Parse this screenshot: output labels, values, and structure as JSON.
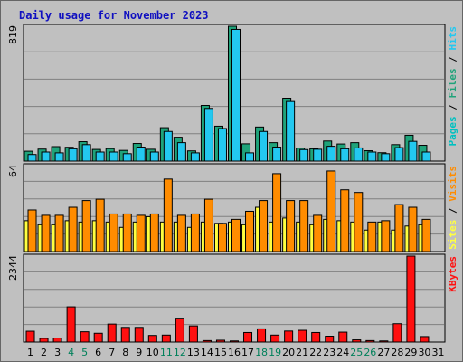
{
  "chart_data": {
    "type": "bar",
    "title": "Daily usage for November 2023",
    "days": [
      "1",
      "2",
      "3",
      "4",
      "5",
      "6",
      "7",
      "8",
      "9",
      "10",
      "11",
      "12",
      "13",
      "14",
      "15",
      "16",
      "17",
      "18",
      "19",
      "20",
      "21",
      "22",
      "23",
      "24",
      "25",
      "26",
      "27",
      "28",
      "29",
      "30",
      "31"
    ],
    "weekend_days": [
      "4",
      "5",
      "11",
      "12",
      "18",
      "19",
      "25",
      "26"
    ],
    "panels": [
      {
        "id": "top",
        "max_label": "819",
        "ylim": [
          0,
          819
        ],
        "legend": [
          "Pages",
          "Files",
          "Hits"
        ],
        "legend_separator": " / ",
        "series": [
          {
            "name": "Pages",
            "color": "#00c0c0",
            "values": [
              null,
              null,
              null,
              null,
              null,
              null,
              null,
              null,
              null,
              null,
              null,
              null,
              null,
              null,
              null,
              null,
              null,
              null,
              null,
              null,
              null,
              null,
              null,
              null,
              null,
              null,
              null,
              null,
              null,
              null,
              null
            ]
          },
          {
            "name": "Files",
            "color": "#1fa37a",
            "values": [
              60,
              73,
              88,
              84,
              118,
              71,
              76,
              65,
              107,
              72,
              203,
              145,
              62,
              338,
              212,
              819,
              105,
              207,
              112,
              382,
              79,
              75,
              122,
              104,
              112,
              63,
              51,
              100,
              157,
              96,
              0
            ]
          },
          {
            "name": "Hits",
            "color": "#23c8f0",
            "values": [
              40,
              55,
              50,
              75,
              100,
              55,
              55,
              45,
              85,
              55,
              180,
              112,
              50,
              320,
              198,
              800,
              50,
              180,
              85,
              362,
              70,
              72,
              90,
              75,
              80,
              55,
              45,
              82,
              120,
              55,
              0
            ]
          }
        ]
      },
      {
        "id": "middle",
        "max_label": "64",
        "ylim": [
          0,
          64
        ],
        "legend": [
          "Sites",
          "Visits"
        ],
        "legend_separator": " / ",
        "series": [
          {
            "name": "Sites",
            "color": "#ffff40",
            "values": [
              23,
              20,
              20,
              23,
              22,
              23,
              22,
              18,
              22,
              26,
              22,
              22,
              18,
              22,
              21,
              22,
              20,
              33,
              22,
              25,
              22,
              20,
              24,
              23,
              22,
              16,
              22,
              16,
              19,
              20,
              0
            ]
          },
          {
            "name": "Visits",
            "color": "#ff8c00",
            "values": [
              31,
              27,
              27,
              33,
              38,
              39,
              28,
              28,
              27,
              28,
              54,
              27,
              28,
              39,
              21,
              24,
              30,
              38,
              58,
              38,
              38,
              27,
              60,
              46,
              44,
              22,
              23,
              35,
              33,
              24,
              0
            ]
          }
        ]
      },
      {
        "id": "bottom",
        "max_label": "2344",
        "ylim": [
          0,
          2344
        ],
        "legend": [
          "KBytes"
        ],
        "legend_separator": "",
        "series": [
          {
            "name": "KBytes",
            "color": "#ff1010",
            "values": [
              295,
              100,
              110,
              960,
              280,
              240,
              490,
              400,
              400,
              180,
              190,
              650,
              440,
              40,
              50,
              30,
              260,
              360,
              190,
              300,
              320,
              260,
              160,
              270,
              60,
              40,
              30,
              500,
              2344,
              150,
              0
            ]
          }
        ]
      }
    ]
  },
  "colors": {
    "weekday_label": "#000000",
    "weekend_label": "#00805a",
    "title": "#1010c0"
  }
}
